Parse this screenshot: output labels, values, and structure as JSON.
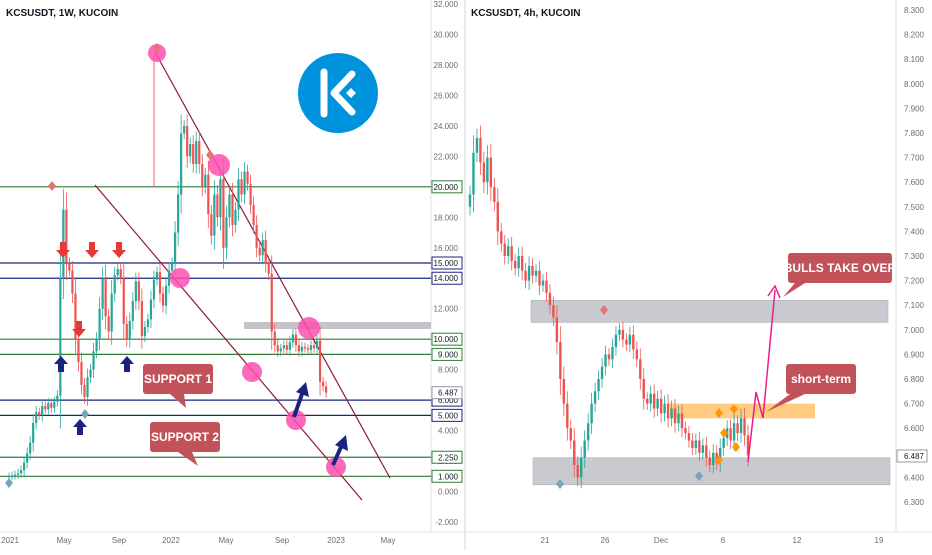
{
  "chart_data": [
    {
      "type": "candlestick",
      "title": "KCSUSDT, 1W, KUCOIN",
      "ylim": [
        -2,
        32
      ],
      "y_ticks": [
        "32.000",
        "30.000",
        "28.000",
        "26.000",
        "24.000",
        "22.000",
        "20.000",
        "18.000",
        "16.000",
        "14.000",
        "12.000",
        "10.000",
        "8.000",
        "6.000",
        "4.000",
        "2.000",
        "0.000",
        "-2.000"
      ],
      "x_ticks": [
        "2021",
        "May",
        "Sep",
        "2022",
        "May",
        "Sep",
        "2023",
        "May"
      ],
      "levels": [
        {
          "value": 20.0,
          "label": "20.000",
          "color": "#2e7d32"
        },
        {
          "value": 15.0,
          "label": "15.000",
          "color": "#1a237e"
        },
        {
          "value": 14.0,
          "label": "14.000",
          "color": "#1a237e"
        },
        {
          "value": 10.0,
          "label": "10.000",
          "color": "#2e7d32"
        },
        {
          "value": 9.0,
          "label": "9.000",
          "color": "#2e7d32"
        },
        {
          "value": 6.0,
          "label": "6.000",
          "color": "#1a237e"
        },
        {
          "value": 5.0,
          "label": "5.000",
          "color": "#1a237e"
        },
        {
          "value": 2.25,
          "label": "2.250",
          "color": "#2e7d32"
        },
        {
          "value": 1.0,
          "label": "1.000",
          "color": "#2e7d32"
        }
      ],
      "last_price": "6.487",
      "annotations": [
        "SUPPORT 1",
        "SUPPORT 2"
      ],
      "colors": {
        "up": "#26a69a",
        "down": "#ef5350",
        "highlight": "#ff4fb0"
      },
      "logo": "kucoin-logo"
    },
    {
      "type": "candlestick",
      "title": "KCSUSDT, 4h, KUCOIN",
      "ylim": [
        6.25,
        8.35
      ],
      "y_ticks": [
        "8.300",
        "8.200",
        "8.100",
        "8.000",
        "7.900",
        "7.800",
        "7.700",
        "7.600",
        "7.500",
        "7.400",
        "7.300",
        "7.200",
        "7.100",
        "7.000",
        "6.900",
        "6.800",
        "6.700",
        "6.600",
        "6.500",
        "6.400",
        "6.300"
      ],
      "x_ticks": [
        "21",
        "26",
        "Dec",
        "6",
        "12",
        "19"
      ],
      "zones": [
        {
          "from": 7.03,
          "to": 7.12,
          "color": "#b8b9bf"
        },
        {
          "from": 6.37,
          "to": 6.48,
          "color": "#b8b9bf"
        },
        {
          "from": 6.64,
          "to": 6.7,
          "color": "#ffb74d"
        }
      ],
      "last_price": "6.487",
      "annotations": [
        "BULLS TAKE OVER",
        "short-term"
      ],
      "colors": {
        "up": "#26a69a",
        "down": "#ef5350",
        "projection": "#e91e8c"
      }
    }
  ]
}
